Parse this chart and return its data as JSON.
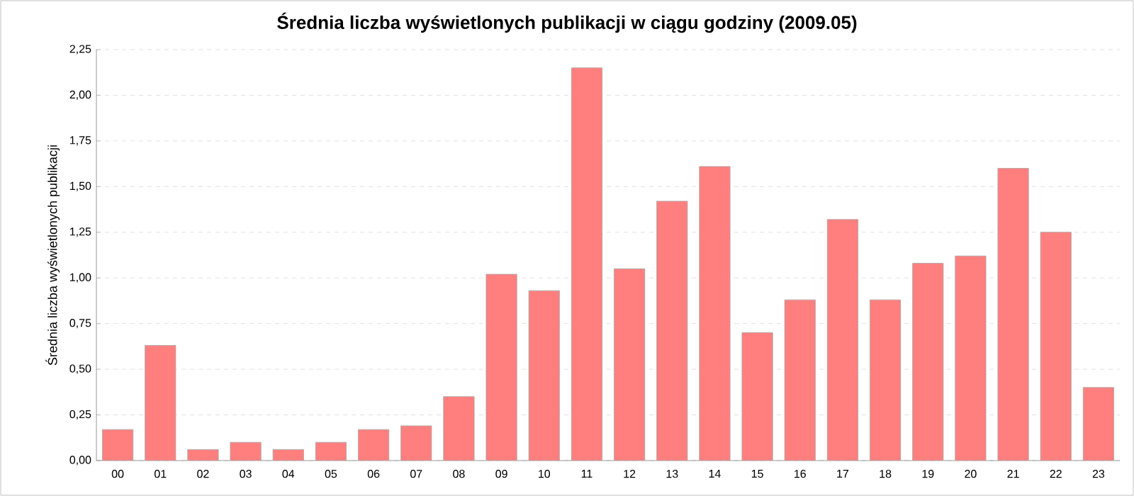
{
  "chart_data": {
    "type": "bar",
    "title": "Średnia liczba wyświetlonych publikacji w ciągu godziny (2009.05)",
    "ylabel": "Średnia liczba wyświetlonych publikacji",
    "categories": [
      "00",
      "01",
      "02",
      "03",
      "04",
      "05",
      "06",
      "07",
      "08",
      "09",
      "10",
      "11",
      "12",
      "13",
      "14",
      "15",
      "16",
      "17",
      "18",
      "19",
      "20",
      "21",
      "22",
      "23"
    ],
    "values": [
      0.17,
      0.63,
      0.06,
      0.1,
      0.06,
      0.1,
      0.17,
      0.19,
      0.35,
      1.02,
      0.93,
      2.15,
      1.05,
      1.42,
      1.61,
      0.7,
      0.88,
      1.32,
      0.88,
      1.08,
      1.12,
      1.6,
      1.25,
      0.4
    ],
    "color": "#ff7f7f",
    "ylim": [
      0,
      2.25
    ],
    "yticks": [
      {
        "value": 0,
        "label": "0,00"
      },
      {
        "value": 0.25,
        "label": "0,25"
      },
      {
        "value": 0.5,
        "label": "0,50"
      },
      {
        "value": 0.75,
        "label": "0,75"
      },
      {
        "value": 1,
        "label": "1,00"
      },
      {
        "value": 1.25,
        "label": "1,25"
      },
      {
        "value": 1.5,
        "label": "1,50"
      },
      {
        "value": 1.75,
        "label": "1,75"
      },
      {
        "value": 2,
        "label": "2,00"
      },
      {
        "value": 2.25,
        "label": "2,25"
      }
    ],
    "grid": "y"
  }
}
